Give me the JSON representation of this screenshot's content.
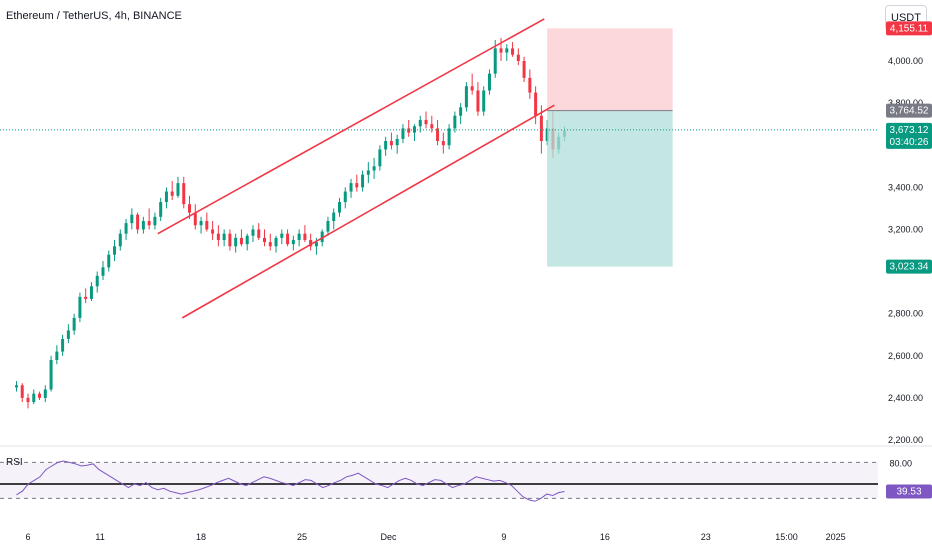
{
  "header": {
    "title": "Ethereum / TetherUS, 4h, BINANCE",
    "currency": "USDT"
  },
  "chart_data": {
    "type": "candlestick",
    "title": "Ethereum / TetherUS, 4h, BINANCE",
    "y_axis": {
      "ticks": [
        "4,000.00",
        "3,800.00",
        "3,400.00",
        "3,200.00",
        "2,800.00",
        "2,600.00",
        "2,400.00",
        "2,200.00"
      ],
      "tick_values": [
        4000,
        3800,
        3400,
        3200,
        2800,
        2600,
        2400,
        2200
      ],
      "range": [
        2180,
        4220
      ]
    },
    "x_axis": {
      "ticks": [
        "6",
        "11",
        "18",
        "25",
        "Dec",
        "9",
        "16",
        "23",
        "15:00",
        "2025"
      ],
      "tick_positions_days": [
        6,
        11,
        18,
        25,
        31,
        39,
        46,
        53,
        58.6,
        62
      ]
    },
    "price_labels": [
      {
        "text": "4,155.11",
        "value": 4155.11,
        "color": "#f23645"
      },
      {
        "text": "3,764.52",
        "value": 3764.52,
        "color": "#787b86"
      },
      {
        "text": "3,673.12",
        "value": 3673.12,
        "color": "#089981",
        "sub": "03:40:26"
      },
      {
        "text": "3,023.34",
        "value": 3023.34,
        "color": "#089981"
      }
    ],
    "current_price": 3673.12,
    "candles": [
      [
        5.2,
        2450,
        2480,
        2430,
        2460
      ],
      [
        5.6,
        2460,
        2470,
        2380,
        2400
      ],
      [
        6.0,
        2400,
        2420,
        2350,
        2380
      ],
      [
        6.4,
        2380,
        2440,
        2370,
        2420
      ],
      [
        6.8,
        2420,
        2430,
        2390,
        2400
      ],
      [
        7.2,
        2400,
        2460,
        2380,
        2440
      ],
      [
        7.6,
        2440,
        2600,
        2430,
        2580
      ],
      [
        8.0,
        2580,
        2650,
        2560,
        2620
      ],
      [
        8.4,
        2620,
        2700,
        2600,
        2680
      ],
      [
        8.8,
        2680,
        2750,
        2660,
        2720
      ],
      [
        9.2,
        2720,
        2800,
        2700,
        2780
      ],
      [
        9.6,
        2780,
        2900,
        2760,
        2880
      ],
      [
        10.0,
        2880,
        2920,
        2850,
        2870
      ],
      [
        10.4,
        2870,
        2950,
        2860,
        2930
      ],
      [
        10.8,
        2930,
        3000,
        2900,
        2980
      ],
      [
        11.2,
        2980,
        3050,
        2960,
        3020
      ],
      [
        11.6,
        3020,
        3100,
        3000,
        3080
      ],
      [
        12.0,
        3080,
        3150,
        3050,
        3120
      ],
      [
        12.4,
        3120,
        3200,
        3100,
        3180
      ],
      [
        12.8,
        3180,
        3250,
        3150,
        3230
      ],
      [
        13.2,
        3230,
        3300,
        3200,
        3270
      ],
      [
        13.6,
        3270,
        3280,
        3180,
        3200
      ],
      [
        14.0,
        3200,
        3260,
        3180,
        3240
      ],
      [
        14.4,
        3240,
        3300,
        3200,
        3220
      ],
      [
        14.8,
        3220,
        3280,
        3200,
        3260
      ],
      [
        15.2,
        3260,
        3350,
        3240,
        3330
      ],
      [
        15.6,
        3330,
        3400,
        3300,
        3380
      ],
      [
        16.0,
        3380,
        3430,
        3340,
        3360
      ],
      [
        16.4,
        3360,
        3450,
        3350,
        3420
      ],
      [
        16.8,
        3420,
        3450,
        3300,
        3320
      ],
      [
        17.2,
        3320,
        3360,
        3250,
        3280
      ],
      [
        17.6,
        3280,
        3320,
        3200,
        3220
      ],
      [
        18.0,
        3220,
        3260,
        3180,
        3240
      ],
      [
        18.4,
        3240,
        3280,
        3190,
        3200
      ],
      [
        18.8,
        3200,
        3240,
        3150,
        3180
      ],
      [
        19.2,
        3180,
        3220,
        3120,
        3150
      ],
      [
        19.6,
        3150,
        3200,
        3120,
        3180
      ],
      [
        20.0,
        3180,
        3200,
        3100,
        3120
      ],
      [
        20.4,
        3120,
        3180,
        3090,
        3160
      ],
      [
        20.8,
        3160,
        3200,
        3120,
        3130
      ],
      [
        21.2,
        3130,
        3180,
        3100,
        3170
      ],
      [
        21.6,
        3170,
        3220,
        3140,
        3200
      ],
      [
        22.0,
        3200,
        3230,
        3150,
        3160
      ],
      [
        22.4,
        3160,
        3200,
        3120,
        3140
      ],
      [
        22.8,
        3140,
        3180,
        3100,
        3120
      ],
      [
        23.2,
        3120,
        3170,
        3090,
        3160
      ],
      [
        23.6,
        3160,
        3200,
        3130,
        3180
      ],
      [
        24.0,
        3180,
        3200,
        3120,
        3130
      ],
      [
        24.4,
        3130,
        3170,
        3100,
        3150
      ],
      [
        24.8,
        3150,
        3200,
        3120,
        3180
      ],
      [
        25.2,
        3180,
        3220,
        3140,
        3150
      ],
      [
        25.6,
        3150,
        3180,
        3100,
        3120
      ],
      [
        26.0,
        3120,
        3160,
        3080,
        3140
      ],
      [
        26.4,
        3140,
        3200,
        3120,
        3190
      ],
      [
        26.8,
        3190,
        3260,
        3170,
        3240
      ],
      [
        27.2,
        3240,
        3300,
        3200,
        3280
      ],
      [
        27.6,
        3280,
        3350,
        3260,
        3330
      ],
      [
        28.0,
        3330,
        3400,
        3300,
        3380
      ],
      [
        28.4,
        3380,
        3440,
        3350,
        3420
      ],
      [
        28.8,
        3420,
        3460,
        3380,
        3400
      ],
      [
        29.2,
        3400,
        3480,
        3380,
        3460
      ],
      [
        29.6,
        3460,
        3520,
        3420,
        3480
      ],
      [
        30.0,
        3480,
        3540,
        3440,
        3500
      ],
      [
        30.4,
        3500,
        3600,
        3480,
        3580
      ],
      [
        30.8,
        3580,
        3640,
        3550,
        3620
      ],
      [
        31.2,
        3620,
        3660,
        3580,
        3600
      ],
      [
        31.6,
        3600,
        3650,
        3560,
        3630
      ],
      [
        32.0,
        3630,
        3700,
        3610,
        3680
      ],
      [
        32.4,
        3680,
        3720,
        3640,
        3660
      ],
      [
        32.8,
        3660,
        3700,
        3620,
        3690
      ],
      [
        33.2,
        3690,
        3740,
        3660,
        3720
      ],
      [
        33.6,
        3720,
        3760,
        3680,
        3700
      ],
      [
        34.0,
        3700,
        3740,
        3660,
        3680
      ],
      [
        34.4,
        3680,
        3720,
        3600,
        3620
      ],
      [
        34.8,
        3620,
        3660,
        3560,
        3600
      ],
      [
        35.2,
        3600,
        3700,
        3580,
        3680
      ],
      [
        35.6,
        3680,
        3760,
        3660,
        3740
      ],
      [
        36.0,
        3740,
        3800,
        3700,
        3780
      ],
      [
        36.4,
        3780,
        3900,
        3760,
        3880
      ],
      [
        36.8,
        3880,
        3940,
        3840,
        3860
      ],
      [
        37.2,
        3860,
        3900,
        3740,
        3760
      ],
      [
        37.6,
        3760,
        3880,
        3740,
        3860
      ],
      [
        38.0,
        3860,
        3960,
        3840,
        3940
      ],
      [
        38.4,
        3940,
        4100,
        3920,
        4060
      ],
      [
        38.8,
        4060,
        4110,
        4000,
        4040
      ],
      [
        39.2,
        4040,
        4080,
        4000,
        4060
      ],
      [
        39.6,
        4060,
        4090,
        4020,
        4030
      ],
      [
        40.0,
        4030,
        4060,
        3980,
        4000
      ],
      [
        40.4,
        4000,
        4020,
        3900,
        3920
      ],
      [
        40.8,
        3920,
        3960,
        3820,
        3850
      ],
      [
        41.2,
        3850,
        3880,
        3700,
        3740
      ],
      [
        41.6,
        3740,
        3790,
        3560,
        3620
      ],
      [
        42.0,
        3620,
        3720,
        3600,
        3680
      ],
      [
        42.4,
        3680,
        3760,
        3540,
        3580
      ],
      [
        42.8,
        3580,
        3660,
        3560,
        3640
      ],
      [
        43.2,
        3640,
        3690,
        3620,
        3670
      ]
    ]
  },
  "drawings": {
    "channel": "ascending channel",
    "position": "short position"
  },
  "rsi": {
    "label": "RSI",
    "levels": [
      "80.00"
    ],
    "level_values": [
      80,
      30
    ],
    "value_label": "39.53",
    "value": 39.53,
    "colors": {
      "line": "#7e57c2",
      "value_bg": "#7e57c2"
    },
    "values": [
      35,
      40,
      50,
      55,
      60,
      70,
      75,
      80,
      82,
      80,
      78,
      75,
      76,
      78,
      70,
      65,
      60,
      55,
      50,
      45,
      50,
      48,
      52,
      45,
      42,
      44,
      40,
      38,
      36,
      38,
      40,
      42,
      45,
      48,
      52,
      55,
      58,
      54,
      50,
      48,
      52,
      56,
      60,
      58,
      55,
      52,
      50,
      48,
      52,
      56,
      55,
      50,
      45,
      48,
      52,
      55,
      60,
      62,
      65,
      60,
      55,
      50,
      48,
      45,
      50,
      55,
      58,
      55,
      50,
      48,
      52,
      56,
      55,
      50,
      45,
      48,
      50,
      55,
      60,
      58,
      56,
      54,
      55,
      52,
      48,
      40,
      32,
      28,
      26,
      30,
      36,
      34,
      38,
      39.53
    ]
  },
  "colors": {
    "up": "#089981",
    "down": "#f23645",
    "channel": "#f23645",
    "target_zone": "#b2dfdb",
    "stop_zone": "#fccbcd",
    "price_line": "#089981"
  }
}
